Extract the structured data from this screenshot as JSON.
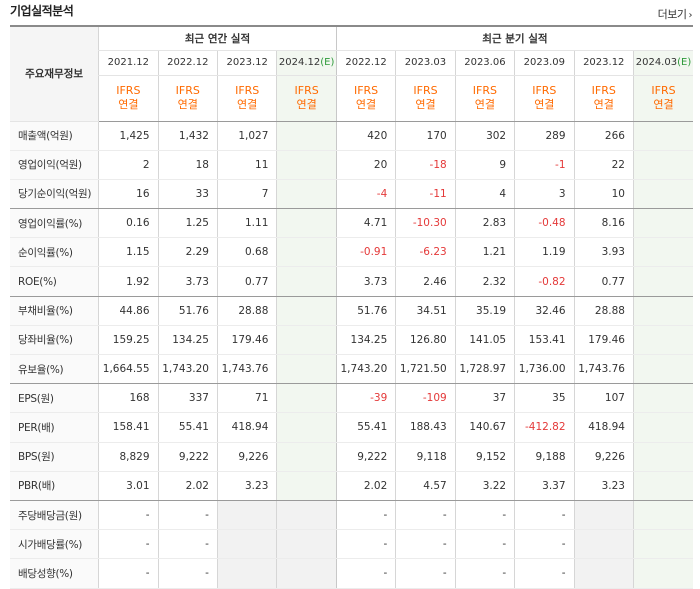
{
  "header": {
    "title": "기업실적분석",
    "more_label": "더보기"
  },
  "table": {
    "corner_label": "주요재무정보",
    "annual_group_label": "최근 연간 실적",
    "quarter_group_label": "최근 분기 실적",
    "periods": [
      "2021.12",
      "2022.12",
      "2023.12",
      "2024.12",
      "2022.12",
      "2023.03",
      "2023.06",
      "2023.09",
      "2023.12",
      "2024.03"
    ],
    "estimate_mark": "(E)",
    "standard": "IFRS",
    "basis": "연결",
    "rows": [
      {
        "label": "매출액(억원)",
        "values": [
          "1,425",
          "1,432",
          "1,027",
          "",
          "420",
          "170",
          "302",
          "289",
          "266",
          ""
        ]
      },
      {
        "label": "영업이익(억원)",
        "values": [
          "2",
          "18",
          "11",
          "",
          "20",
          "-18",
          "9",
          "-1",
          "22",
          ""
        ]
      },
      {
        "label": "당기순이익(억원)",
        "values": [
          "16",
          "33",
          "7",
          "",
          "-4",
          "-11",
          "4",
          "3",
          "10",
          ""
        ]
      },
      {
        "label": "영업이익률(%)",
        "values": [
          "0.16",
          "1.25",
          "1.11",
          "",
          "4.71",
          "-10.30",
          "2.83",
          "-0.48",
          "8.16",
          ""
        ]
      },
      {
        "label": "순이익률(%)",
        "values": [
          "1.15",
          "2.29",
          "0.68",
          "",
          "-0.91",
          "-6.23",
          "1.21",
          "1.19",
          "3.93",
          ""
        ]
      },
      {
        "label": "ROE(%)",
        "values": [
          "1.92",
          "3.73",
          "0.77",
          "",
          "3.73",
          "2.46",
          "2.32",
          "-0.82",
          "0.77",
          ""
        ]
      },
      {
        "label": "부채비율(%)",
        "values": [
          "44.86",
          "51.76",
          "28.88",
          "",
          "51.76",
          "34.51",
          "35.19",
          "32.46",
          "28.88",
          ""
        ]
      },
      {
        "label": "당좌비율(%)",
        "values": [
          "159.25",
          "134.25",
          "179.46",
          "",
          "134.25",
          "126.80",
          "141.05",
          "153.41",
          "179.46",
          ""
        ]
      },
      {
        "label": "유보율(%)",
        "values": [
          "1,664.55",
          "1,743.20",
          "1,743.76",
          "",
          "1,743.20",
          "1,721.50",
          "1,728.97",
          "1,736.00",
          "1,743.76",
          ""
        ]
      },
      {
        "label": "EPS(원)",
        "values": [
          "168",
          "337",
          "71",
          "",
          "-39",
          "-109",
          "37",
          "35",
          "107",
          ""
        ]
      },
      {
        "label": "PER(배)",
        "values": [
          "158.41",
          "55.41",
          "418.94",
          "",
          "55.41",
          "188.43",
          "140.67",
          "-412.82",
          "418.94",
          ""
        ]
      },
      {
        "label": "BPS(원)",
        "values": [
          "8,829",
          "9,222",
          "9,226",
          "",
          "9,222",
          "9,118",
          "9,152",
          "9,188",
          "9,226",
          ""
        ]
      },
      {
        "label": "PBR(배)",
        "values": [
          "3.01",
          "2.02",
          "3.23",
          "",
          "2.02",
          "4.57",
          "3.22",
          "3.37",
          "3.23",
          ""
        ]
      },
      {
        "label": "주당배당금(원)",
        "values": [
          "-",
          "-",
          "",
          "",
          "-",
          "-",
          "-",
          "-",
          "",
          ""
        ]
      },
      {
        "label": "시가배당률(%)",
        "values": [
          "-",
          "-",
          "",
          "",
          "-",
          "-",
          "-",
          "-",
          "",
          ""
        ]
      },
      {
        "label": "배당성향(%)",
        "values": [
          "-",
          "-",
          "",
          "",
          "-",
          "-",
          "-",
          "-",
          "",
          ""
        ]
      }
    ]
  },
  "colors": {
    "negative": "#e43939",
    "ifrs": "#ff6a00",
    "estimate_bg": "#f2f7f0",
    "estimate_mark": "#2e9a3a"
  }
}
